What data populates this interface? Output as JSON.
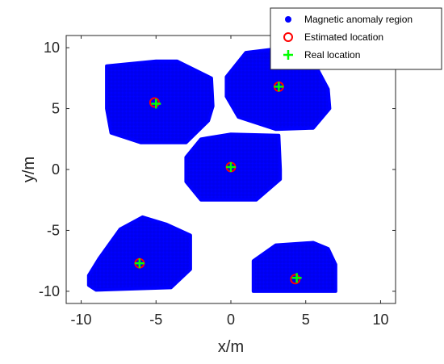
{
  "chart_data": {
    "type": "scatter",
    "title": "",
    "xlabel": "x/m",
    "ylabel": "y/m",
    "xlim": [
      -11,
      11
    ],
    "ylim": [
      -11,
      11
    ],
    "xticks": [
      "-10",
      "-5",
      "0",
      "5",
      "10"
    ],
    "yticks": [
      "10",
      "5",
      "0",
      "-5",
      "-10"
    ],
    "grid": false,
    "legend_position": "top-right",
    "legend": [
      "Magnetic anomaly region",
      "Estimated location",
      "Real location"
    ],
    "colors": {
      "region": "#0000ff",
      "estimated": "#ff0000",
      "real": "#00ff00"
    },
    "regions": [
      {
        "outline": [
          [
            -8.3,
            8.5
          ],
          [
            -5.0,
            8.9
          ],
          [
            -3.6,
            8.9
          ],
          [
            -1.3,
            7.5
          ],
          [
            -1.2,
            5.2
          ],
          [
            -1.5,
            4.0
          ],
          [
            -3.0,
            2.2
          ],
          [
            -6.0,
            2.2
          ],
          [
            -8.0,
            3.0
          ],
          [
            -8.3,
            5.0
          ]
        ]
      },
      {
        "outline": [
          [
            -0.3,
            7.6
          ],
          [
            1.0,
            9.6
          ],
          [
            3.0,
            9.9
          ],
          [
            5.5,
            8.9
          ],
          [
            6.5,
            6.6
          ],
          [
            6.6,
            5.0
          ],
          [
            5.5,
            3.4
          ],
          [
            3.0,
            3.3
          ],
          [
            0.5,
            4.3
          ],
          [
            -0.3,
            6.0
          ]
        ]
      },
      {
        "outline": [
          [
            -3.0,
            1.0
          ],
          [
            -2.0,
            2.5
          ],
          [
            0.0,
            2.9
          ],
          [
            3.2,
            2.8
          ],
          [
            3.3,
            0.0
          ],
          [
            3.3,
            -0.8
          ],
          [
            1.7,
            -2.5
          ],
          [
            -2.0,
            -2.5
          ],
          [
            -3.0,
            -1.0
          ]
        ]
      },
      {
        "outline": [
          [
            -9.5,
            -8.7
          ],
          [
            -8.8,
            -7.3
          ],
          [
            -7.4,
            -4.9
          ],
          [
            -5.9,
            -3.9
          ],
          [
            -4.3,
            -4.5
          ],
          [
            -2.7,
            -5.4
          ],
          [
            -2.7,
            -8.2
          ],
          [
            -4.0,
            -9.7
          ],
          [
            -9.0,
            -9.9
          ],
          [
            -9.5,
            -9.5
          ]
        ]
      },
      {
        "outline": [
          [
            1.5,
            -7.5
          ],
          [
            3.0,
            -6.2
          ],
          [
            5.5,
            -6.0
          ],
          [
            6.5,
            -6.5
          ],
          [
            7.0,
            -7.8
          ],
          [
            7.0,
            -10.0
          ],
          [
            1.5,
            -10.0
          ]
        ]
      }
    ],
    "estimated": [
      [
        -5.1,
        5.5
      ],
      [
        3.2,
        6.8
      ],
      [
        0.0,
        0.2
      ],
      [
        -6.1,
        -7.7
      ],
      [
        4.3,
        -9.0
      ]
    ],
    "real": [
      [
        -5.0,
        5.4
      ],
      [
        3.2,
        6.8
      ],
      [
        0.0,
        0.2
      ],
      [
        -6.1,
        -7.7
      ],
      [
        4.4,
        -8.9
      ]
    ]
  }
}
